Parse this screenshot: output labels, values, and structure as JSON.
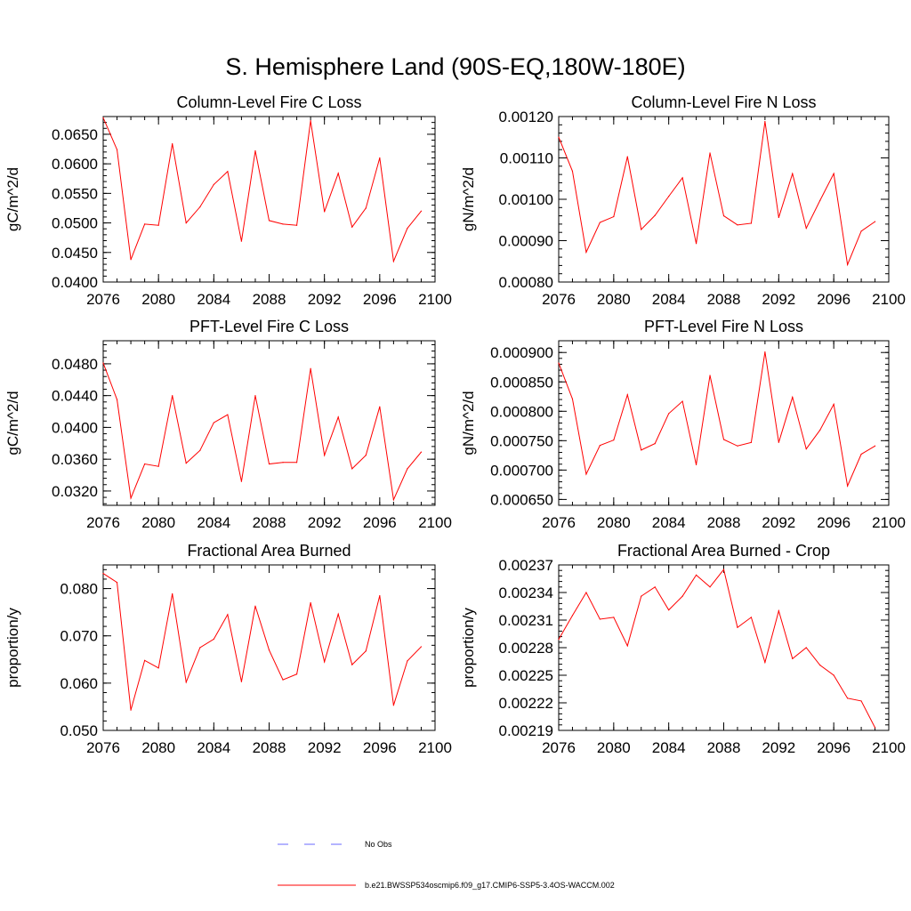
{
  "figure": {
    "title": "S. Hemisphere Land (90S-EQ,180W-180E)",
    "series_color": "#ff0000",
    "obs_color": "#6a6aff"
  },
  "legend": {
    "obs_label": "No Obs",
    "model_label": "b.e21.BWSSP534oscmip6.f09_g17.CMIP6-SSP5-3.4OS-WACCM.002"
  },
  "chart_data": [
    {
      "type": "line",
      "title": "Column-Level Fire C Loss",
      "ylabel": "gC/m^2/d",
      "xlabel": "",
      "xlim": [
        2076,
        2100
      ],
      "ylim": [
        0.04,
        0.068
      ],
      "xticks": [
        "2076",
        "2080",
        "2084",
        "2088",
        "2092",
        "2096",
        "2100"
      ],
      "yticks": [
        {
          "v": 0.04,
          "label": "0.0400"
        },
        {
          "v": 0.045,
          "label": "0.0450"
        },
        {
          "v": 0.05,
          "label": "0.0500"
        },
        {
          "v": 0.055,
          "label": "0.0550"
        },
        {
          "v": 0.06,
          "label": "0.0600"
        },
        {
          "v": 0.065,
          "label": "0.0650"
        }
      ],
      "x": [
        2076,
        2077,
        2078,
        2079,
        2080,
        2081,
        2082,
        2083,
        2084,
        2085,
        2086,
        2087,
        2088,
        2089,
        2090,
        2091,
        2092,
        2093,
        2094,
        2095,
        2096,
        2097,
        2098,
        2099
      ],
      "series": [
        {
          "name": "b.e21.BWSSP534oscmip6.f09_g17.CMIP6-SSP5-3.4OS-WACCM.002",
          "values": [
            0.0678,
            0.0624,
            0.0438,
            0.0498,
            0.0496,
            0.0634,
            0.05,
            0.0527,
            0.0565,
            0.0587,
            0.0469,
            0.0622,
            0.0504,
            0.0498,
            0.0496,
            0.0673,
            0.0519,
            0.0584,
            0.0493,
            0.0525,
            0.061,
            0.0435,
            0.0491,
            0.052
          ]
        }
      ]
    },
    {
      "type": "line",
      "title": "Column-Level Fire N Loss",
      "ylabel": "gN/m^2/d",
      "xlabel": "",
      "xlim": [
        2076,
        2100
      ],
      "ylim": [
        0.0008,
        0.0012
      ],
      "xticks": [
        "2076",
        "2080",
        "2084",
        "2088",
        "2092",
        "2096",
        "2100"
      ],
      "yticks": [
        {
          "v": 0.0008,
          "label": "0.00080"
        },
        {
          "v": 0.0009,
          "label": "0.00090"
        },
        {
          "v": 0.001,
          "label": "0.00100"
        },
        {
          "v": 0.0011,
          "label": "0.00110"
        },
        {
          "v": 0.0012,
          "label": "0.00120"
        }
      ],
      "x": [
        2076,
        2077,
        2078,
        2079,
        2080,
        2081,
        2082,
        2083,
        2084,
        2085,
        2086,
        2087,
        2088,
        2089,
        2090,
        2091,
        2092,
        2093,
        2094,
        2095,
        2096,
        2097,
        2098,
        2099
      ],
      "series": [
        {
          "name": "b.e21.BWSSP534oscmip6.f09_g17.CMIP6-SSP5-3.4OS-WACCM.002",
          "values": [
            0.00115,
            0.001068,
            0.000872,
            0.000944,
            0.000958,
            0.001103,
            0.000927,
            0.000961,
            0.001007,
            0.001052,
            0.000893,
            0.001112,
            0.00096,
            0.000938,
            0.000942,
            0.001188,
            0.000956,
            0.001062,
            0.00093,
            0.000997,
            0.001062,
            0.000842,
            0.000923,
            0.000946
          ]
        }
      ]
    },
    {
      "type": "line",
      "title": "PFT-Level Fire C Loss",
      "ylabel": "gC/m^2/d",
      "xlabel": "",
      "xlim": [
        2076,
        2100
      ],
      "ylim": [
        0.0302,
        0.0509
      ],
      "xticks": [
        "2076",
        "2080",
        "2084",
        "2088",
        "2092",
        "2096",
        "2100"
      ],
      "yticks": [
        {
          "v": 0.032,
          "label": "0.0320"
        },
        {
          "v": 0.036,
          "label": "0.0360"
        },
        {
          "v": 0.04,
          "label": "0.0400"
        },
        {
          "v": 0.044,
          "label": "0.0440"
        },
        {
          "v": 0.048,
          "label": "0.0480"
        }
      ],
      "x": [
        2076,
        2077,
        2078,
        2079,
        2080,
        2081,
        2082,
        2083,
        2084,
        2085,
        2086,
        2087,
        2088,
        2089,
        2090,
        2091,
        2092,
        2093,
        2094,
        2095,
        2096,
        2097,
        2098,
        2099
      ],
      "series": [
        {
          "name": "b.e21.BWSSP534oscmip6.f09_g17.CMIP6-SSP5-3.4OS-WACCM.002",
          "values": [
            0.0481,
            0.0435,
            0.0311,
            0.0354,
            0.0351,
            0.044,
            0.0355,
            0.0371,
            0.0406,
            0.0416,
            0.0332,
            0.044,
            0.0354,
            0.0356,
            0.0356,
            0.0474,
            0.0365,
            0.0413,
            0.0348,
            0.0365,
            0.0426,
            0.0309,
            0.0348,
            0.0369
          ]
        }
      ]
    },
    {
      "type": "line",
      "title": "PFT-Level Fire N Loss",
      "ylabel": "gN/m^2/d",
      "xlabel": "",
      "xlim": [
        2076,
        2100
      ],
      "ylim": [
        0.00064,
        0.00092
      ],
      "xticks": [
        "2076",
        "2080",
        "2084",
        "2088",
        "2092",
        "2096",
        "2100"
      ],
      "yticks": [
        {
          "v": 0.00065,
          "label": "0.000650"
        },
        {
          "v": 0.0007,
          "label": "0.000700"
        },
        {
          "v": 0.00075,
          "label": "0.000750"
        },
        {
          "v": 0.0008,
          "label": "0.000800"
        },
        {
          "v": 0.00085,
          "label": "0.000850"
        },
        {
          "v": 0.0009,
          "label": "0.000900"
        }
      ],
      "x": [
        2076,
        2077,
        2078,
        2079,
        2080,
        2081,
        2082,
        2083,
        2084,
        2085,
        2086,
        2087,
        2088,
        2089,
        2090,
        2091,
        2092,
        2093,
        2094,
        2095,
        2096,
        2097,
        2098,
        2099
      ],
      "series": [
        {
          "name": "b.e21.BWSSP534oscmip6.f09_g17.CMIP6-SSP5-3.4OS-WACCM.002",
          "values": [
            0.000882,
            0.000821,
            0.000693,
            0.000742,
            0.000751,
            0.000828,
            0.000734,
            0.000745,
            0.000796,
            0.000817,
            0.000709,
            0.000861,
            0.000752,
            0.000741,
            0.000747,
            0.000901,
            0.000747,
            0.000824,
            0.000736,
            0.000768,
            0.000812,
            0.000673,
            0.000727,
            0.000741
          ]
        }
      ]
    },
    {
      "type": "line",
      "title": "Fractional Area Burned",
      "ylabel": "proportion/y",
      "xlabel": "",
      "xlim": [
        2076,
        2100
      ],
      "ylim": [
        0.05,
        0.085
      ],
      "xticks": [
        "2076",
        "2080",
        "2084",
        "2088",
        "2092",
        "2096",
        "2100"
      ],
      "yticks": [
        {
          "v": 0.05,
          "label": "0.050"
        },
        {
          "v": 0.06,
          "label": "0.060"
        },
        {
          "v": 0.07,
          "label": "0.070"
        },
        {
          "v": 0.08,
          "label": "0.080"
        }
      ],
      "x": [
        2076,
        2077,
        2078,
        2079,
        2080,
        2081,
        2082,
        2083,
        2084,
        2085,
        2086,
        2087,
        2088,
        2089,
        2090,
        2091,
        2092,
        2093,
        2094,
        2095,
        2096,
        2097,
        2098,
        2099
      ],
      "series": [
        {
          "name": "b.e21.BWSSP534oscmip6.f09_g17.CMIP6-SSP5-3.4OS-WACCM.002",
          "values": [
            0.0832,
            0.0813,
            0.0543,
            0.0648,
            0.0632,
            0.0789,
            0.0602,
            0.0675,
            0.0693,
            0.0745,
            0.0603,
            0.0763,
            0.067,
            0.0607,
            0.0619,
            0.077,
            0.0645,
            0.0746,
            0.0639,
            0.0668,
            0.0785,
            0.0553,
            0.0647,
            0.0677
          ]
        }
      ]
    },
    {
      "type": "line",
      "title": "Fractional Area Burned - Crop",
      "ylabel": "proportion/y",
      "xlabel": "",
      "xlim": [
        2076,
        2100
      ],
      "ylim": [
        0.00219,
        0.00237
      ],
      "xticks": [
        "2076",
        "2080",
        "2084",
        "2088",
        "2092",
        "2096",
        "2100"
      ],
      "yticks": [
        {
          "v": 0.00219,
          "label": "0.00219"
        },
        {
          "v": 0.00222,
          "label": "0.00222"
        },
        {
          "v": 0.00225,
          "label": "0.00225"
        },
        {
          "v": 0.00228,
          "label": "0.00228"
        },
        {
          "v": 0.00231,
          "label": "0.00231"
        },
        {
          "v": 0.00234,
          "label": "0.00234"
        },
        {
          "v": 0.00237,
          "label": "0.00237"
        }
      ],
      "x": [
        2076,
        2077,
        2078,
        2079,
        2080,
        2081,
        2082,
        2083,
        2084,
        2085,
        2086,
        2087,
        2088,
        2089,
        2090,
        2091,
        2092,
        2093,
        2094,
        2095,
        2096,
        2097,
        2098,
        2099
      ],
      "series": [
        {
          "name": "b.e21.BWSSP534oscmip6.f09_g17.CMIP6-SSP5-3.4OS-WACCM.002",
          "values": [
            0.002289,
            0.002315,
            0.00234,
            0.002311,
            0.002313,
            0.002282,
            0.002336,
            0.002346,
            0.002321,
            0.002336,
            0.002359,
            0.002346,
            0.002365,
            0.002302,
            0.002313,
            0.002264,
            0.00232,
            0.002268,
            0.00228,
            0.002261,
            0.00225,
            0.002225,
            0.002222,
            0.002193
          ]
        }
      ]
    }
  ]
}
